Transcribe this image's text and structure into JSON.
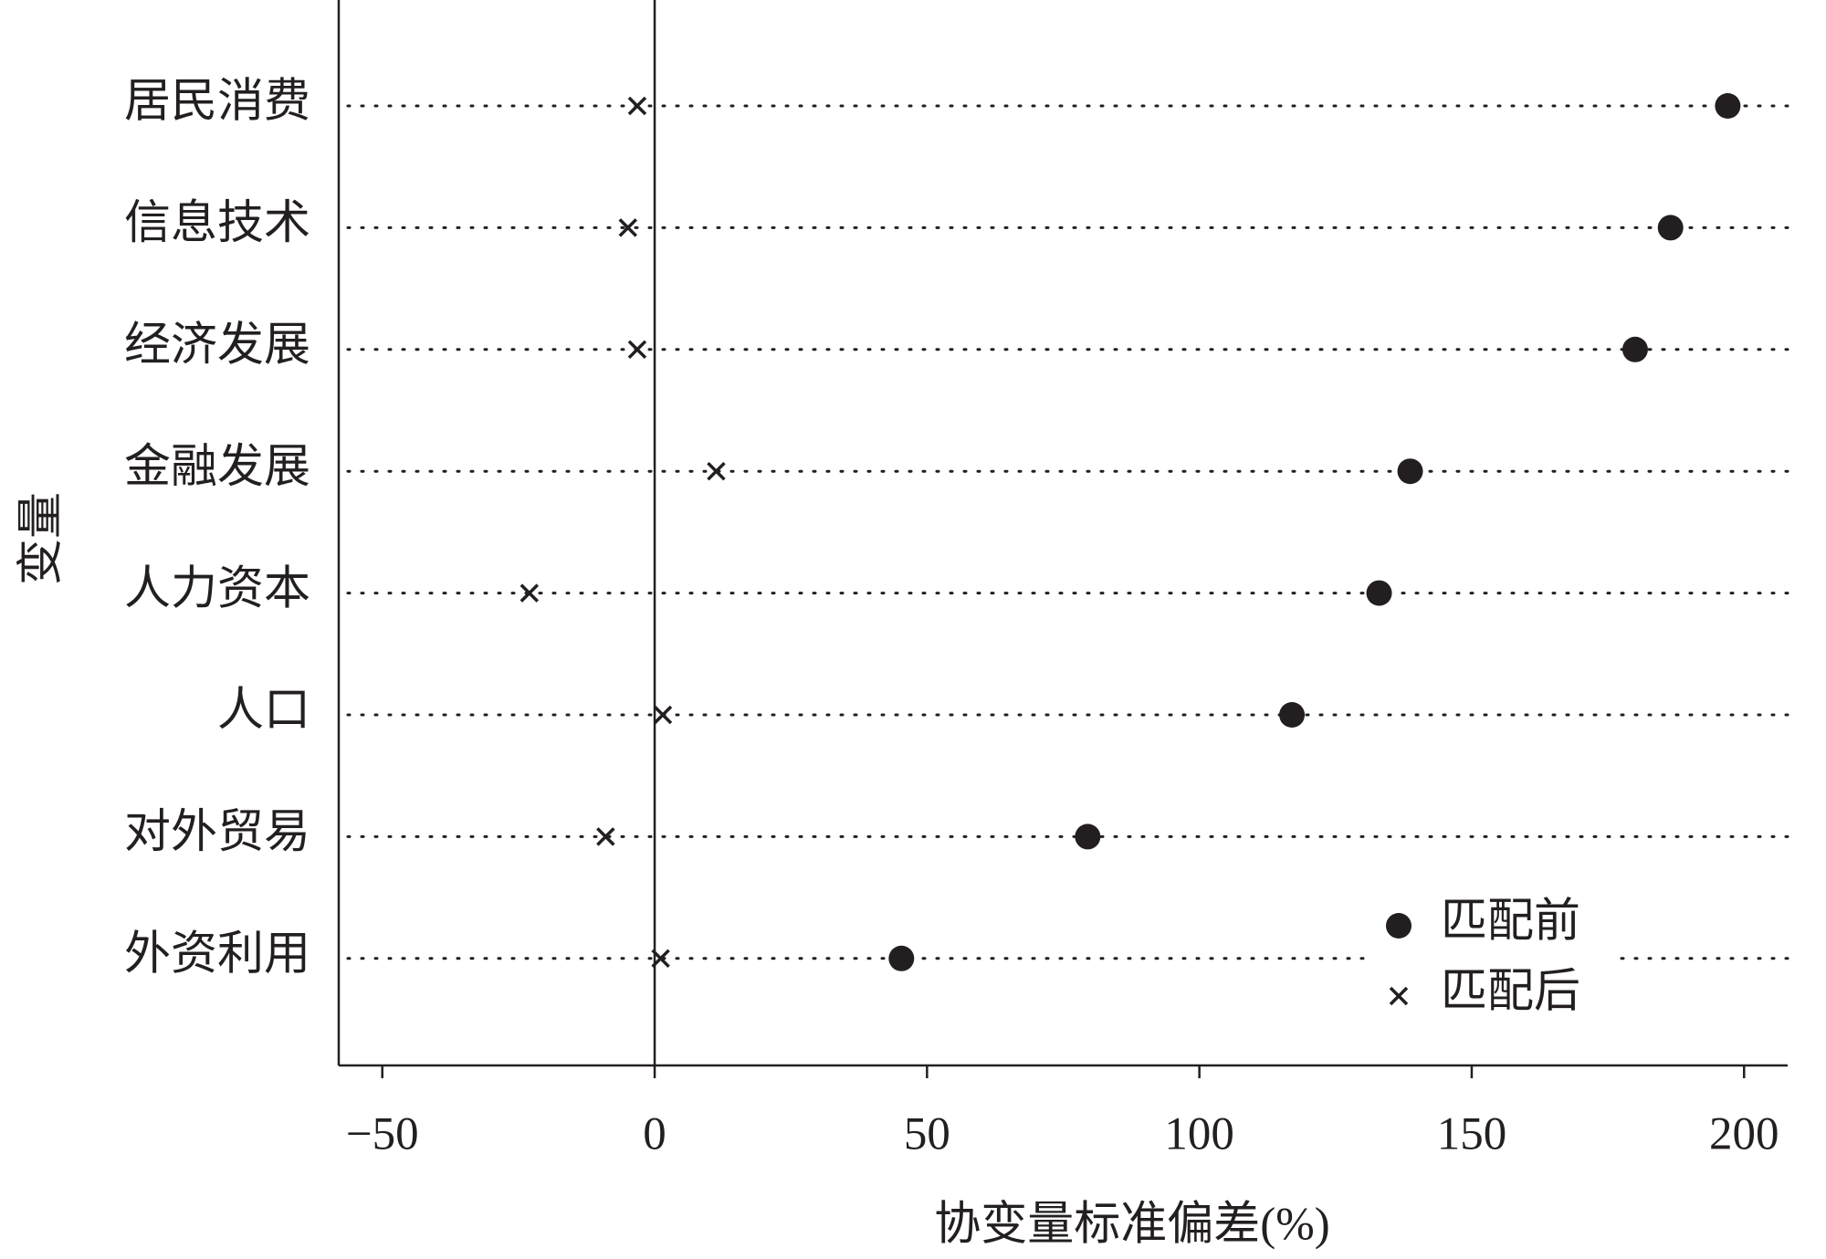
{
  "chart_data": {
    "type": "dot",
    "xlabel": "协变量标准偏差(%)",
    "ylabel": "变量",
    "categories": [
      "居民消费",
      "信息技术",
      "经济发展",
      "金融发展",
      "人力资本",
      "人口",
      "对外贸易",
      "外资利用"
    ],
    "series": [
      {
        "name": "匹配前",
        "marker": "circle",
        "color": "#231f20",
        "values": [
          197,
          186.5,
          180,
          138.7,
          133,
          117,
          79.5,
          45.3
        ]
      },
      {
        "name": "匹配后",
        "marker": "x",
        "color": "#231f20",
        "values": [
          -3.2,
          -4.9,
          -3.2,
          11.3,
          -23,
          1.5,
          -9,
          1.1
        ]
      }
    ],
    "xlim": [
      -58,
      208
    ],
    "xticks": [
      {
        "value": -50,
        "label": "−50"
      },
      0,
      50,
      100,
      150,
      200
    ],
    "zero_line": true,
    "legend": "lower right"
  }
}
